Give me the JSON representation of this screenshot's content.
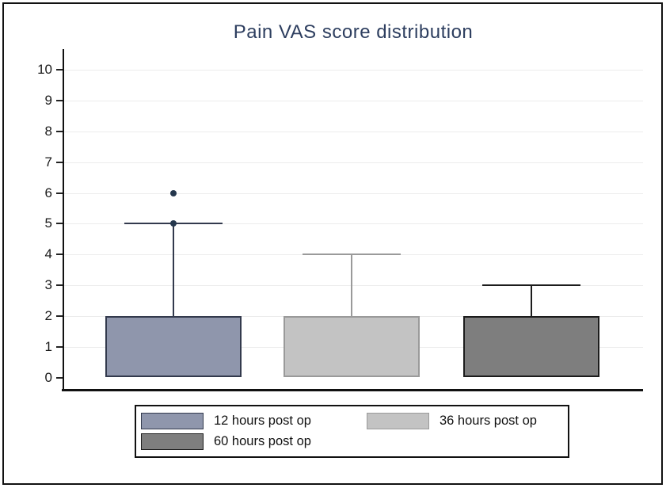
{
  "chart_data": {
    "type": "box",
    "title": "Pain VAS score distribution",
    "xlabel": "",
    "ylabel": "",
    "ylim": [
      0,
      10
    ],
    "yticks": [
      0,
      1,
      2,
      3,
      4,
      5,
      6,
      7,
      8,
      9,
      10
    ],
    "grid": true,
    "legend_position": "bottom",
    "series": [
      {
        "name": "12 hours post op",
        "q1": 0,
        "q3": 2,
        "whisker_low": 0,
        "whisker_high": 5,
        "outliers": [
          5,
          6
        ],
        "fill": "#8F96AC",
        "stroke": "#333A4D"
      },
      {
        "name": "36 hours post op",
        "q1": 0,
        "q3": 2,
        "whisker_low": 0,
        "whisker_high": 4,
        "outliers": [],
        "fill": "#C3C3C3",
        "stroke": "#9A9A9A"
      },
      {
        "name": "60 hours post op",
        "q1": 0,
        "q3": 2,
        "whisker_low": 0,
        "whisker_high": 3,
        "outliers": [],
        "fill": "#7E7E7E",
        "stroke": "#1C1C1C"
      }
    ],
    "colors": {
      "title": "#2D3E5F",
      "outlier": "#24374D",
      "grid": "#ECECEC",
      "axis": "#111111"
    }
  }
}
